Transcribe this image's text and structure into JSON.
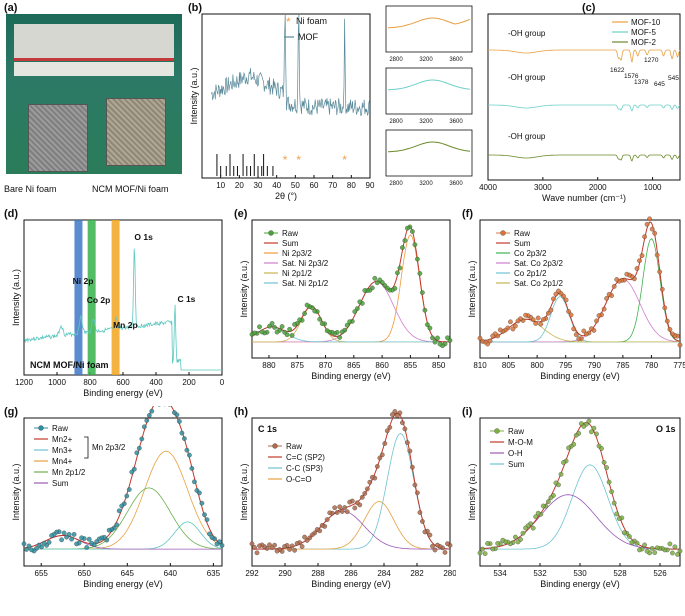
{
  "panels": {
    "a": {
      "label": "(a)",
      "captions": [
        "Bare Ni foam",
        "NCM MOF/Ni foam"
      ]
    },
    "b": {
      "label": "(b)",
      "inset_ticks": [
        "2800",
        "3200",
        "3600"
      ]
    },
    "c": {
      "label": "(c)"
    },
    "d": {
      "label": "(d)"
    },
    "e": {
      "label": "(e)"
    },
    "f": {
      "label": "(f)"
    },
    "g": {
      "label": "(g)"
    },
    "h": {
      "label": "(h)"
    },
    "i": {
      "label": "(i)"
    }
  },
  "colors": {
    "ni_foam": "#f0a050",
    "mof": "#5a8a9a",
    "mof10": "#e8a040",
    "mof5": "#6ccfc8",
    "mof2": "#6b8a2a",
    "raw_green": "#4aa23a",
    "raw_orange": "#d8743a",
    "raw_teal": "#2f8fa0",
    "raw_brown": "#b06a4a"
  },
  "chart_data": [
    {
      "id": "b",
      "type": "line",
      "title": "",
      "xlabel": "2θ (°)",
      "ylabel": "Intensity (a.u.)",
      "xlim": [
        0,
        90
      ],
      "xticks": [
        10,
        20,
        30,
        40,
        50,
        60,
        70,
        80,
        90
      ],
      "legend": [
        "Ni foam",
        "MOF"
      ],
      "ni_foam_peaks": [
        44.5,
        51.8,
        76.4
      ],
      "series": [
        {
          "name": "MOF"
        }
      ]
    },
    {
      "id": "c",
      "type": "line",
      "xlabel": "Wave number (cm⁻¹)",
      "ylabel": "",
      "xlim": [
        4000,
        500
      ],
      "xticks": [
        4000,
        3000,
        2000,
        1000
      ],
      "series": [
        {
          "name": "MOF-10"
        },
        {
          "name": "MOF-5"
        },
        {
          "name": "MOF-2"
        }
      ],
      "annotations": [
        "-OH group",
        "-OH group",
        "-OH group",
        "1622",
        "1576",
        "1378",
        "1270",
        "645",
        "545"
      ]
    },
    {
      "id": "d",
      "type": "line",
      "xlabel": "Binding energy (eV)",
      "ylabel": "Intensity (a.u.)",
      "xlim": [
        1200,
        0
      ],
      "xticks": [
        1200,
        1000,
        800,
        600,
        400,
        200,
        0
      ],
      "labels": [
        "O 1s",
        "Ni 2p",
        "Co 2p",
        "Mn 2p",
        "C 1s"
      ],
      "footer": "NCM MOF/Ni foam",
      "bands": [
        {
          "x": 870,
          "color": "#3f78c8"
        },
        {
          "x": 790,
          "color": "#35b24a"
        },
        {
          "x": 645,
          "color": "#f2a620"
        }
      ]
    },
    {
      "id": "e",
      "type": "scatter",
      "xlabel": "Binding energy (eV)",
      "ylabel": "Intensity (a.u.)",
      "xlim": [
        883,
        848
      ],
      "xticks": [
        880,
        875,
        870,
        865,
        860,
        855,
        850
      ],
      "legend": [
        "Raw",
        "Sum",
        "Ni 2p3/2",
        "Sat. Ni 2p3/2",
        "Ni 2p1/2",
        "Sat. Ni 2p1/2"
      ],
      "peaks": [
        {
          "center": 855.0,
          "height": 0.85,
          "width": 1.6
        },
        {
          "center": 861.0,
          "height": 0.48,
          "width": 3.0
        },
        {
          "center": 872.5,
          "height": 0.28,
          "width": 1.8
        },
        {
          "center": 879.5,
          "height": 0.12,
          "width": 2.5
        }
      ]
    },
    {
      "id": "f",
      "type": "scatter",
      "xlabel": "Binding energy (eV)",
      "ylabel": "Intensity (a.u.)",
      "xlim": [
        810,
        775
      ],
      "xticks": [
        810,
        805,
        800,
        795,
        790,
        785,
        780,
        775
      ],
      "legend": [
        "Raw",
        "Sum",
        "Co 2p3/2",
        "Sat. Co 2p3/2",
        "Co 2p1/2",
        "Sat. Co 2p1/2"
      ],
      "peaks": [
        {
          "center": 780.0,
          "height": 0.82,
          "width": 1.5
        },
        {
          "center": 785.0,
          "height": 0.5,
          "width": 3.0
        },
        {
          "center": 796.0,
          "height": 0.36,
          "width": 1.6
        },
        {
          "center": 802.0,
          "height": 0.18,
          "width": 3.0
        }
      ]
    },
    {
      "id": "g",
      "type": "scatter",
      "xlabel": "Binding energy (eV)",
      "ylabel": "Intensity (a.u.)",
      "xlim": [
        657,
        634
      ],
      "xticks": [
        655,
        650,
        645,
        640,
        635
      ],
      "legend": [
        "Raw",
        "Mn2+",
        "Mn3+",
        "Mn4+",
        "Mn 2p1/2",
        "Sum"
      ],
      "group_label": "Mn 2p3/2",
      "peaks": [
        {
          "center": 640.5,
          "height": 0.72,
          "width": 2.5
        },
        {
          "center": 642.5,
          "height": 0.45,
          "width": 2.5
        },
        {
          "center": 638.0,
          "height": 0.2,
          "width": 1.5
        },
        {
          "center": 652.5,
          "height": 0.1,
          "width": 2.0
        }
      ]
    },
    {
      "id": "h",
      "type": "scatter",
      "title": "C 1s",
      "xlabel": "Binding energy (eV)",
      "ylabel": "Intensity (a.u.)",
      "xlim": [
        292,
        280
      ],
      "xticks": [
        292,
        290,
        288,
        286,
        284,
        282,
        280
      ],
      "legend": [
        "Raw",
        "C=C (SP2)",
        "C-C (SP3)",
        "O-C=O"
      ],
      "peaks": [
        {
          "center": 283.0,
          "height": 0.85,
          "width": 0.8
        },
        {
          "center": 284.3,
          "height": 0.35,
          "width": 0.9
        },
        {
          "center": 286.5,
          "height": 0.28,
          "width": 1.3
        }
      ]
    },
    {
      "id": "i",
      "type": "scatter",
      "title": "O 1s",
      "xlabel": "Binding energy (eV)",
      "ylabel": "Intensity (a.u.)",
      "xlim": [
        535,
        525
      ],
      "xticks": [
        534,
        532,
        530,
        528,
        526
      ],
      "legend": [
        "Raw",
        "M-O-M",
        "O-H",
        "Sum"
      ],
      "peaks": [
        {
          "center": 529.5,
          "height": 0.62,
          "width": 0.9
        },
        {
          "center": 530.6,
          "height": 0.4,
          "width": 1.4
        }
      ]
    }
  ]
}
